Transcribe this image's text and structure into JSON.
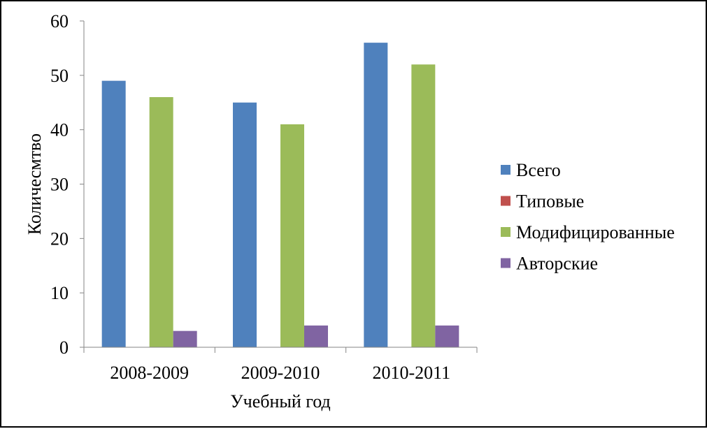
{
  "chart_data": {
    "type": "bar",
    "title": "",
    "xlabel": "Учебный год",
    "ylabel": "Количесмтво",
    "ylim": [
      0,
      60
    ],
    "yticks": [
      0,
      10,
      20,
      30,
      40,
      50,
      60
    ],
    "categories": [
      "2008-2009",
      "2009-2010",
      "2010-2011"
    ],
    "series": [
      {
        "name": "Всего",
        "color": "#4F81BD",
        "values": [
          49,
          45,
          56
        ]
      },
      {
        "name": "Типовые",
        "color": "#C0504D",
        "values": [
          0,
          0,
          0
        ]
      },
      {
        "name": "Модифицированные",
        "color": "#9BBB59",
        "values": [
          46,
          41,
          52
        ]
      },
      {
        "name": "Авторские",
        "color": "#8064A2",
        "values": [
          3,
          4,
          4
        ]
      }
    ],
    "grid": false,
    "legend_position": "right"
  }
}
